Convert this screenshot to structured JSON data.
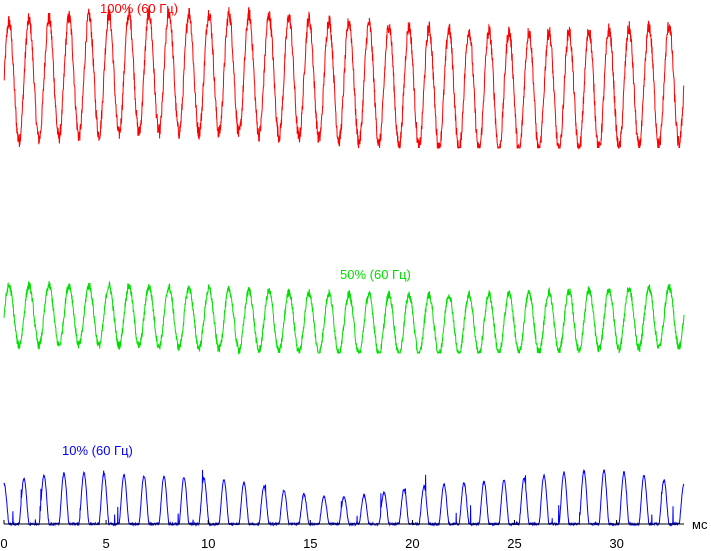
{
  "chart_data": {
    "type": "line",
    "xlabel": "",
    "x_unit": "мс",
    "xlim": [
      0,
      33.3
    ],
    "x_ticks": [
      {
        "value": 0,
        "label": "0"
      },
      {
        "value": 5,
        "label": "5"
      },
      {
        "value": 10,
        "label": "10"
      },
      {
        "value": 15,
        "label": "15"
      },
      {
        "value": 20,
        "label": "20"
      },
      {
        "value": 25,
        "label": "25"
      },
      {
        "value": 30,
        "label": "30"
      }
    ],
    "grid": false,
    "legend": "none",
    "series": [
      {
        "name": "100% (60 Гц)",
        "color": "#ff0000",
        "brightness_percent": 100,
        "frequency_hz": 60,
        "waveform": "sinusoidal",
        "cycles_in_window": 34,
        "relative_low": 0.78,
        "relative_high": 1.0
      },
      {
        "name": "50% (60 Гц)",
        "color": "#00e000",
        "brightness_percent": 50,
        "frequency_hz": 60,
        "waveform": "sinusoidal",
        "cycles_in_window": 34,
        "relative_low": 0.34,
        "relative_high": 0.46
      },
      {
        "name": "10% (60 Гц)",
        "color": "#0000ff",
        "brightness_percent": 10,
        "frequency_hz": 60,
        "waveform": "pulsed",
        "cycles_in_window": 34,
        "relative_low": 0.0,
        "relative_high": 0.08
      }
    ]
  }
}
